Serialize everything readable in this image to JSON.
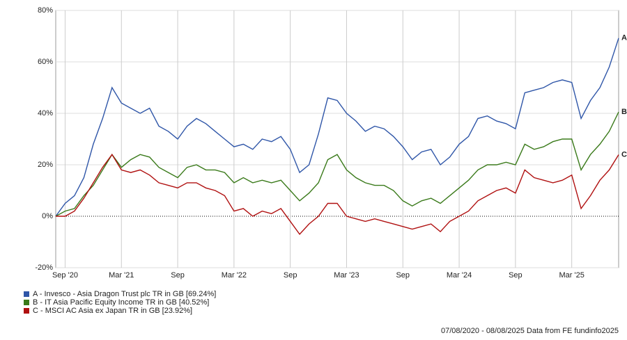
{
  "chart_data": {
    "type": "line",
    "x": [
      "2020-08",
      "2020-09",
      "2020-10",
      "2020-11",
      "2020-12",
      "2021-01",
      "2021-02",
      "2021-03",
      "2021-04",
      "2021-05",
      "2021-06",
      "2021-07",
      "2021-08",
      "2021-09",
      "2021-10",
      "2021-11",
      "2021-12",
      "2022-01",
      "2022-02",
      "2022-03",
      "2022-04",
      "2022-05",
      "2022-06",
      "2022-07",
      "2022-08",
      "2022-09",
      "2022-10",
      "2022-11",
      "2022-12",
      "2023-01",
      "2023-02",
      "2023-03",
      "2023-04",
      "2023-05",
      "2023-06",
      "2023-07",
      "2023-08",
      "2023-09",
      "2023-10",
      "2023-11",
      "2023-12",
      "2024-01",
      "2024-02",
      "2024-03",
      "2024-04",
      "2024-05",
      "2024-06",
      "2024-07",
      "2024-08",
      "2024-09",
      "2024-10",
      "2024-11",
      "2024-12",
      "2025-01",
      "2025-02",
      "2025-03",
      "2025-04",
      "2025-05",
      "2025-06",
      "2025-07",
      "2025-08"
    ],
    "series": [
      {
        "name": "A - Invesco - Asia Dragon Trust plc TR in GB [69.24%]",
        "label": "A",
        "color": "#2f56a8",
        "values": [
          0,
          5,
          8,
          15,
          28,
          38,
          50,
          44,
          42,
          40,
          42,
          35,
          33,
          30,
          35,
          38,
          36,
          33,
          30,
          27,
          28,
          26,
          30,
          29,
          31,
          26,
          17,
          20,
          32,
          46,
          45,
          40,
          37,
          33,
          35,
          34,
          31,
          27,
          22,
          25,
          26,
          20,
          23,
          28,
          31,
          38,
          39,
          37,
          36,
          34,
          48,
          49,
          50,
          52,
          53,
          52,
          38,
          45,
          50,
          58,
          69.24
        ]
      },
      {
        "name": "B - IT Asia Pacific Equity Income TR in GB [40.52%]",
        "label": "B",
        "color": "#3a7a1a",
        "values": [
          0,
          2,
          3,
          8,
          12,
          18,
          24,
          19,
          22,
          24,
          23,
          19,
          17,
          15,
          19,
          20,
          18,
          18,
          17,
          13,
          15,
          13,
          14,
          13,
          14,
          10,
          6,
          9,
          13,
          22,
          24,
          18,
          15,
          13,
          12,
          12,
          10,
          6,
          4,
          6,
          7,
          5,
          8,
          11,
          14,
          18,
          20,
          20,
          21,
          20,
          28,
          26,
          27,
          29,
          30,
          30,
          18,
          24,
          28,
          33,
          40.52
        ]
      },
      {
        "name": "C - MSCI AC Asia ex Japan TR in GB [23.92%]",
        "label": "C",
        "color": "#b01010",
        "values": [
          0,
          0,
          2,
          7,
          13,
          19,
          24,
          18,
          17,
          18,
          16,
          13,
          12,
          11,
          13,
          13,
          11,
          10,
          8,
          2,
          3,
          0,
          2,
          1,
          3,
          -2,
          -7,
          -3,
          0,
          5,
          5,
          0,
          -1,
          -2,
          -1,
          -2,
          -3,
          -4,
          -5,
          -4,
          -3,
          -6,
          -2,
          0,
          2,
          6,
          8,
          10,
          11,
          9,
          18,
          15,
          14,
          13,
          14,
          16,
          3,
          8,
          14,
          18,
          23.92
        ]
      }
    ],
    "xlim": [
      "2020-08",
      "2025-08"
    ],
    "xticks": [
      {
        "value": "2020-09",
        "label": "Sep '20"
      },
      {
        "value": "2021-03",
        "label": "Mar '21"
      },
      {
        "value": "2021-09",
        "label": "Sep"
      },
      {
        "value": "2022-03",
        "label": "Mar '22"
      },
      {
        "value": "2022-09",
        "label": "Sep"
      },
      {
        "value": "2023-03",
        "label": "Mar '23"
      },
      {
        "value": "2023-09",
        "label": "Sep"
      },
      {
        "value": "2024-03",
        "label": "Mar '24"
      },
      {
        "value": "2024-09",
        "label": "Sep"
      },
      {
        "value": "2025-03",
        "label": "Mar '25"
      }
    ],
    "ylim": [
      -20,
      80
    ],
    "yticks": [
      {
        "value": -20,
        "label": "-20%"
      },
      {
        "value": 0,
        "label": "0%"
      },
      {
        "value": 20,
        "label": "20%"
      },
      {
        "value": 40,
        "label": "40%"
      },
      {
        "value": 60,
        "label": "60%"
      },
      {
        "value": 80,
        "label": "80%"
      }
    ],
    "grid": true,
    "footer": "07/08/2020 - 08/08/2025 Data from FE fundinfo2025"
  }
}
